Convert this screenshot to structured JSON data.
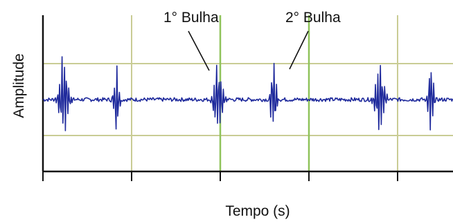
{
  "chart_data": {
    "type": "line",
    "title": "",
    "xlabel": "Tempo (s)",
    "ylabel": "Amplitude",
    "x_ticks_shown_without_labels": 5,
    "grid": true,
    "grid_color": "#c9cc94",
    "highlight_grid_color": "#8fc35a",
    "series_color": "#1f2a9c",
    "annotations": [
      {
        "text": "1° Bulha"
      },
      {
        "text": "2° Bulha"
      }
    ],
    "series": [
      {
        "values": [
          0,
          0.02,
          -0.03,
          0.01,
          0.55,
          -0.6,
          0.7,
          -0.5,
          0.4,
          -0.35,
          0.05,
          -0.02,
          0.03,
          -0.01,
          0.02,
          0,
          -0.02,
          0.03,
          -0.01,
          0.02,
          0.01,
          0.5,
          -0.55,
          0.45,
          -0.05,
          0.02,
          -0.01,
          0,
          0.01,
          -0.02,
          0.02,
          -0.01,
          0,
          0.02,
          -0.01,
          0.01,
          0.45,
          -0.6,
          0.6,
          -0.4,
          0.3,
          -0.02,
          0.01,
          0,
          -0.02,
          0.03,
          0.55,
          -0.75,
          0.2,
          -0.05,
          0.02,
          0,
          -0.01,
          0.02,
          -0.02,
          0.01,
          0,
          0.02,
          -0.01,
          0.01,
          0,
          -0.02,
          0.02,
          0.01,
          0.5,
          -0.55,
          0.45,
          -0.35,
          0.3,
          -0.02,
          0.01,
          0,
          0.02,
          -0.01,
          0.01,
          0.5,
          -0.7,
          0.05,
          -0.02,
          0.01,
          0,
          0.02,
          -0.01
        ]
      }
    ]
  }
}
